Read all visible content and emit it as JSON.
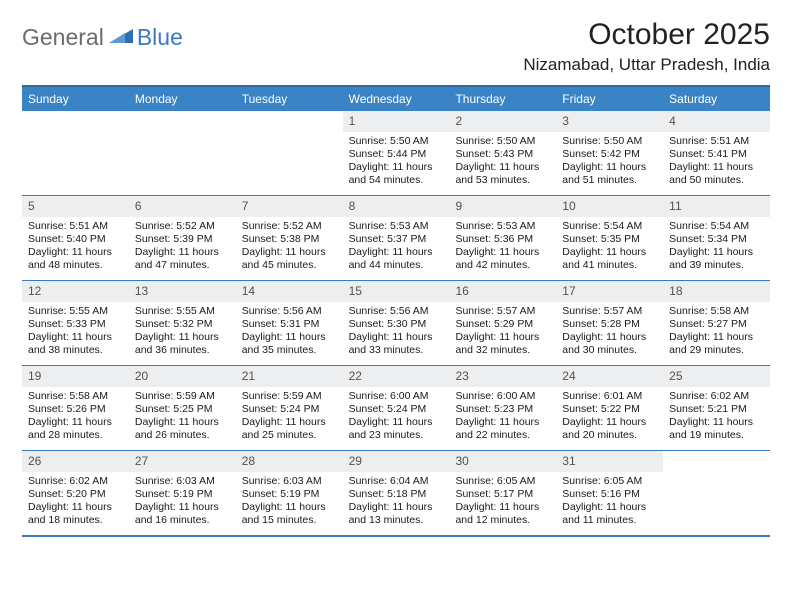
{
  "logo": {
    "general": "General",
    "blue": "Blue"
  },
  "title": "October 2025",
  "location": "Nizamabad, Uttar Pradesh, India",
  "header_bg": "#3a84c6",
  "header_border": "#2f6aa0",
  "row_border": "#3a7bbf",
  "daynum_bg": "#eceef0",
  "weekday_font_size": 12,
  "day_font_size": 10.5,
  "title_font_size": 30,
  "location_font_size": 17,
  "weekdays": [
    "Sunday",
    "Monday",
    "Tuesday",
    "Wednesday",
    "Thursday",
    "Friday",
    "Saturday"
  ],
  "weeks": [
    [
      null,
      null,
      null,
      {
        "n": "1",
        "sr": "5:50 AM",
        "ss": "5:44 PM",
        "dl": "11 hours and 54 minutes."
      },
      {
        "n": "2",
        "sr": "5:50 AM",
        "ss": "5:43 PM",
        "dl": "11 hours and 53 minutes."
      },
      {
        "n": "3",
        "sr": "5:50 AM",
        "ss": "5:42 PM",
        "dl": "11 hours and 51 minutes."
      },
      {
        "n": "4",
        "sr": "5:51 AM",
        "ss": "5:41 PM",
        "dl": "11 hours and 50 minutes."
      }
    ],
    [
      {
        "n": "5",
        "sr": "5:51 AM",
        "ss": "5:40 PM",
        "dl": "11 hours and 48 minutes."
      },
      {
        "n": "6",
        "sr": "5:52 AM",
        "ss": "5:39 PM",
        "dl": "11 hours and 47 minutes."
      },
      {
        "n": "7",
        "sr": "5:52 AM",
        "ss": "5:38 PM",
        "dl": "11 hours and 45 minutes."
      },
      {
        "n": "8",
        "sr": "5:53 AM",
        "ss": "5:37 PM",
        "dl": "11 hours and 44 minutes."
      },
      {
        "n": "9",
        "sr": "5:53 AM",
        "ss": "5:36 PM",
        "dl": "11 hours and 42 minutes."
      },
      {
        "n": "10",
        "sr": "5:54 AM",
        "ss": "5:35 PM",
        "dl": "11 hours and 41 minutes."
      },
      {
        "n": "11",
        "sr": "5:54 AM",
        "ss": "5:34 PM",
        "dl": "11 hours and 39 minutes."
      }
    ],
    [
      {
        "n": "12",
        "sr": "5:55 AM",
        "ss": "5:33 PM",
        "dl": "11 hours and 38 minutes."
      },
      {
        "n": "13",
        "sr": "5:55 AM",
        "ss": "5:32 PM",
        "dl": "11 hours and 36 minutes."
      },
      {
        "n": "14",
        "sr": "5:56 AM",
        "ss": "5:31 PM",
        "dl": "11 hours and 35 minutes."
      },
      {
        "n": "15",
        "sr": "5:56 AM",
        "ss": "5:30 PM",
        "dl": "11 hours and 33 minutes."
      },
      {
        "n": "16",
        "sr": "5:57 AM",
        "ss": "5:29 PM",
        "dl": "11 hours and 32 minutes."
      },
      {
        "n": "17",
        "sr": "5:57 AM",
        "ss": "5:28 PM",
        "dl": "11 hours and 30 minutes."
      },
      {
        "n": "18",
        "sr": "5:58 AM",
        "ss": "5:27 PM",
        "dl": "11 hours and 29 minutes."
      }
    ],
    [
      {
        "n": "19",
        "sr": "5:58 AM",
        "ss": "5:26 PM",
        "dl": "11 hours and 28 minutes."
      },
      {
        "n": "20",
        "sr": "5:59 AM",
        "ss": "5:25 PM",
        "dl": "11 hours and 26 minutes."
      },
      {
        "n": "21",
        "sr": "5:59 AM",
        "ss": "5:24 PM",
        "dl": "11 hours and 25 minutes."
      },
      {
        "n": "22",
        "sr": "6:00 AM",
        "ss": "5:24 PM",
        "dl": "11 hours and 23 minutes."
      },
      {
        "n": "23",
        "sr": "6:00 AM",
        "ss": "5:23 PM",
        "dl": "11 hours and 22 minutes."
      },
      {
        "n": "24",
        "sr": "6:01 AM",
        "ss": "5:22 PM",
        "dl": "11 hours and 20 minutes."
      },
      {
        "n": "25",
        "sr": "6:02 AM",
        "ss": "5:21 PM",
        "dl": "11 hours and 19 minutes."
      }
    ],
    [
      {
        "n": "26",
        "sr": "6:02 AM",
        "ss": "5:20 PM",
        "dl": "11 hours and 18 minutes."
      },
      {
        "n": "27",
        "sr": "6:03 AM",
        "ss": "5:19 PM",
        "dl": "11 hours and 16 minutes."
      },
      {
        "n": "28",
        "sr": "6:03 AM",
        "ss": "5:19 PM",
        "dl": "11 hours and 15 minutes."
      },
      {
        "n": "29",
        "sr": "6:04 AM",
        "ss": "5:18 PM",
        "dl": "11 hours and 13 minutes."
      },
      {
        "n": "30",
        "sr": "6:05 AM",
        "ss": "5:17 PM",
        "dl": "11 hours and 12 minutes."
      },
      {
        "n": "31",
        "sr": "6:05 AM",
        "ss": "5:16 PM",
        "dl": "11 hours and 11 minutes."
      },
      null
    ]
  ],
  "labels": {
    "sunrise": "Sunrise: ",
    "sunset": "Sunset: ",
    "daylight": "Daylight: "
  }
}
